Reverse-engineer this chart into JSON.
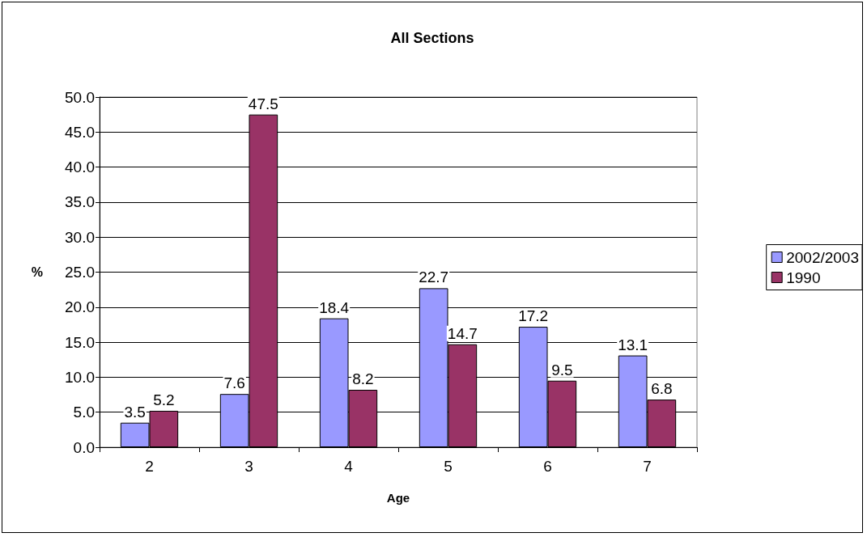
{
  "chart_data": {
    "type": "bar",
    "title": "All Sections",
    "xlabel": "Age",
    "ylabel": "%",
    "categories": [
      "2",
      "3",
      "4",
      "5",
      "6",
      "7"
    ],
    "series": [
      {
        "name": "2002/2003",
        "color": "#9999ff",
        "values": [
          3.5,
          7.6,
          18.4,
          22.7,
          17.2,
          13.1
        ]
      },
      {
        "name": "1990",
        "color": "#993366",
        "values": [
          5.2,
          47.5,
          8.2,
          14.7,
          9.5,
          6.8
        ]
      }
    ],
    "ylim": [
      0,
      50
    ],
    "yticks": [
      {
        "value": 0,
        "label": "0.0"
      },
      {
        "value": 5,
        "label": "5.0"
      },
      {
        "value": 10,
        "label": "10.0"
      },
      {
        "value": 15,
        "label": "15.0"
      },
      {
        "value": 20,
        "label": "20.0"
      },
      {
        "value": 25,
        "label": "25.0"
      },
      {
        "value": 30,
        "label": "30.0"
      },
      {
        "value": 35,
        "label": "35.0"
      },
      {
        "value": 40,
        "label": "40.0"
      },
      {
        "value": 45,
        "label": "45.0"
      },
      {
        "value": 50,
        "label": "50.0"
      }
    ],
    "grid": "y",
    "legend": "right",
    "data_labels": true
  }
}
